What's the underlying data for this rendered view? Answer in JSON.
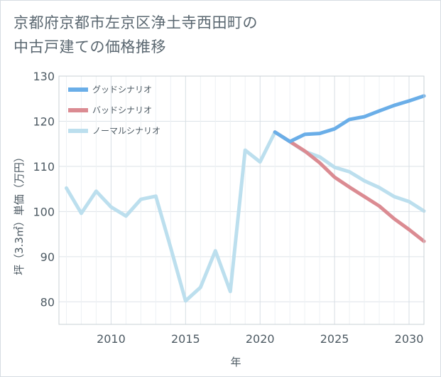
{
  "page": {
    "title_line1": "京都府京都市左京区浄土寺西田町の",
    "title_line2": "中古戸建ての価格推移"
  },
  "chart_data": {
    "type": "line",
    "xlabel": "年",
    "ylabel": "坪（3.3㎡）単価（万円）",
    "xlim": [
      2006.5,
      2031
    ],
    "ylim": [
      75,
      130
    ],
    "xticks": [
      2010,
      2015,
      2020,
      2025,
      2030
    ],
    "yticks": [
      80,
      90,
      100,
      110,
      120,
      130
    ],
    "grid": true,
    "legend_position": "top-left",
    "series": [
      {
        "name": "グッドシナリオ",
        "color": "#6aaee8",
        "x": [
          2021,
          2022,
          2023,
          2024,
          2025,
          2026,
          2027,
          2028,
          2029,
          2030,
          2031
        ],
        "values": [
          117.6,
          115.5,
          117.1,
          117.3,
          118.3,
          120.4,
          121.0,
          122.3,
          123.5,
          124.5,
          125.6
        ]
      },
      {
        "name": "バッドシナリオ",
        "color": "#db8b92",
        "x": [
          2021,
          2022,
          2023,
          2024,
          2025,
          2026,
          2027,
          2028,
          2029,
          2030,
          2031
        ],
        "values": [
          117.6,
          115.5,
          113.4,
          110.8,
          107.6,
          105.4,
          103.3,
          101.2,
          98.4,
          96.0,
          93.4
        ]
      },
      {
        "name": "ノーマルシナリオ",
        "color": "#bcdfee",
        "x": [
          2007,
          2008,
          2009,
          2010,
          2011,
          2012,
          2013,
          2014,
          2015,
          2016,
          2017,
          2018,
          2019,
          2020,
          2021,
          2022,
          2023,
          2024,
          2025,
          2026,
          2027,
          2028,
          2029,
          2030,
          2031
        ],
        "values": [
          105.2,
          99.6,
          104.5,
          101.0,
          99.0,
          102.7,
          103.4,
          92.0,
          80.2,
          83.2,
          91.3,
          82.3,
          113.6,
          111.0,
          117.6,
          115.5,
          113.3,
          112.1,
          109.8,
          108.8,
          106.8,
          105.3,
          103.3,
          102.2,
          100.1
        ]
      }
    ]
  }
}
